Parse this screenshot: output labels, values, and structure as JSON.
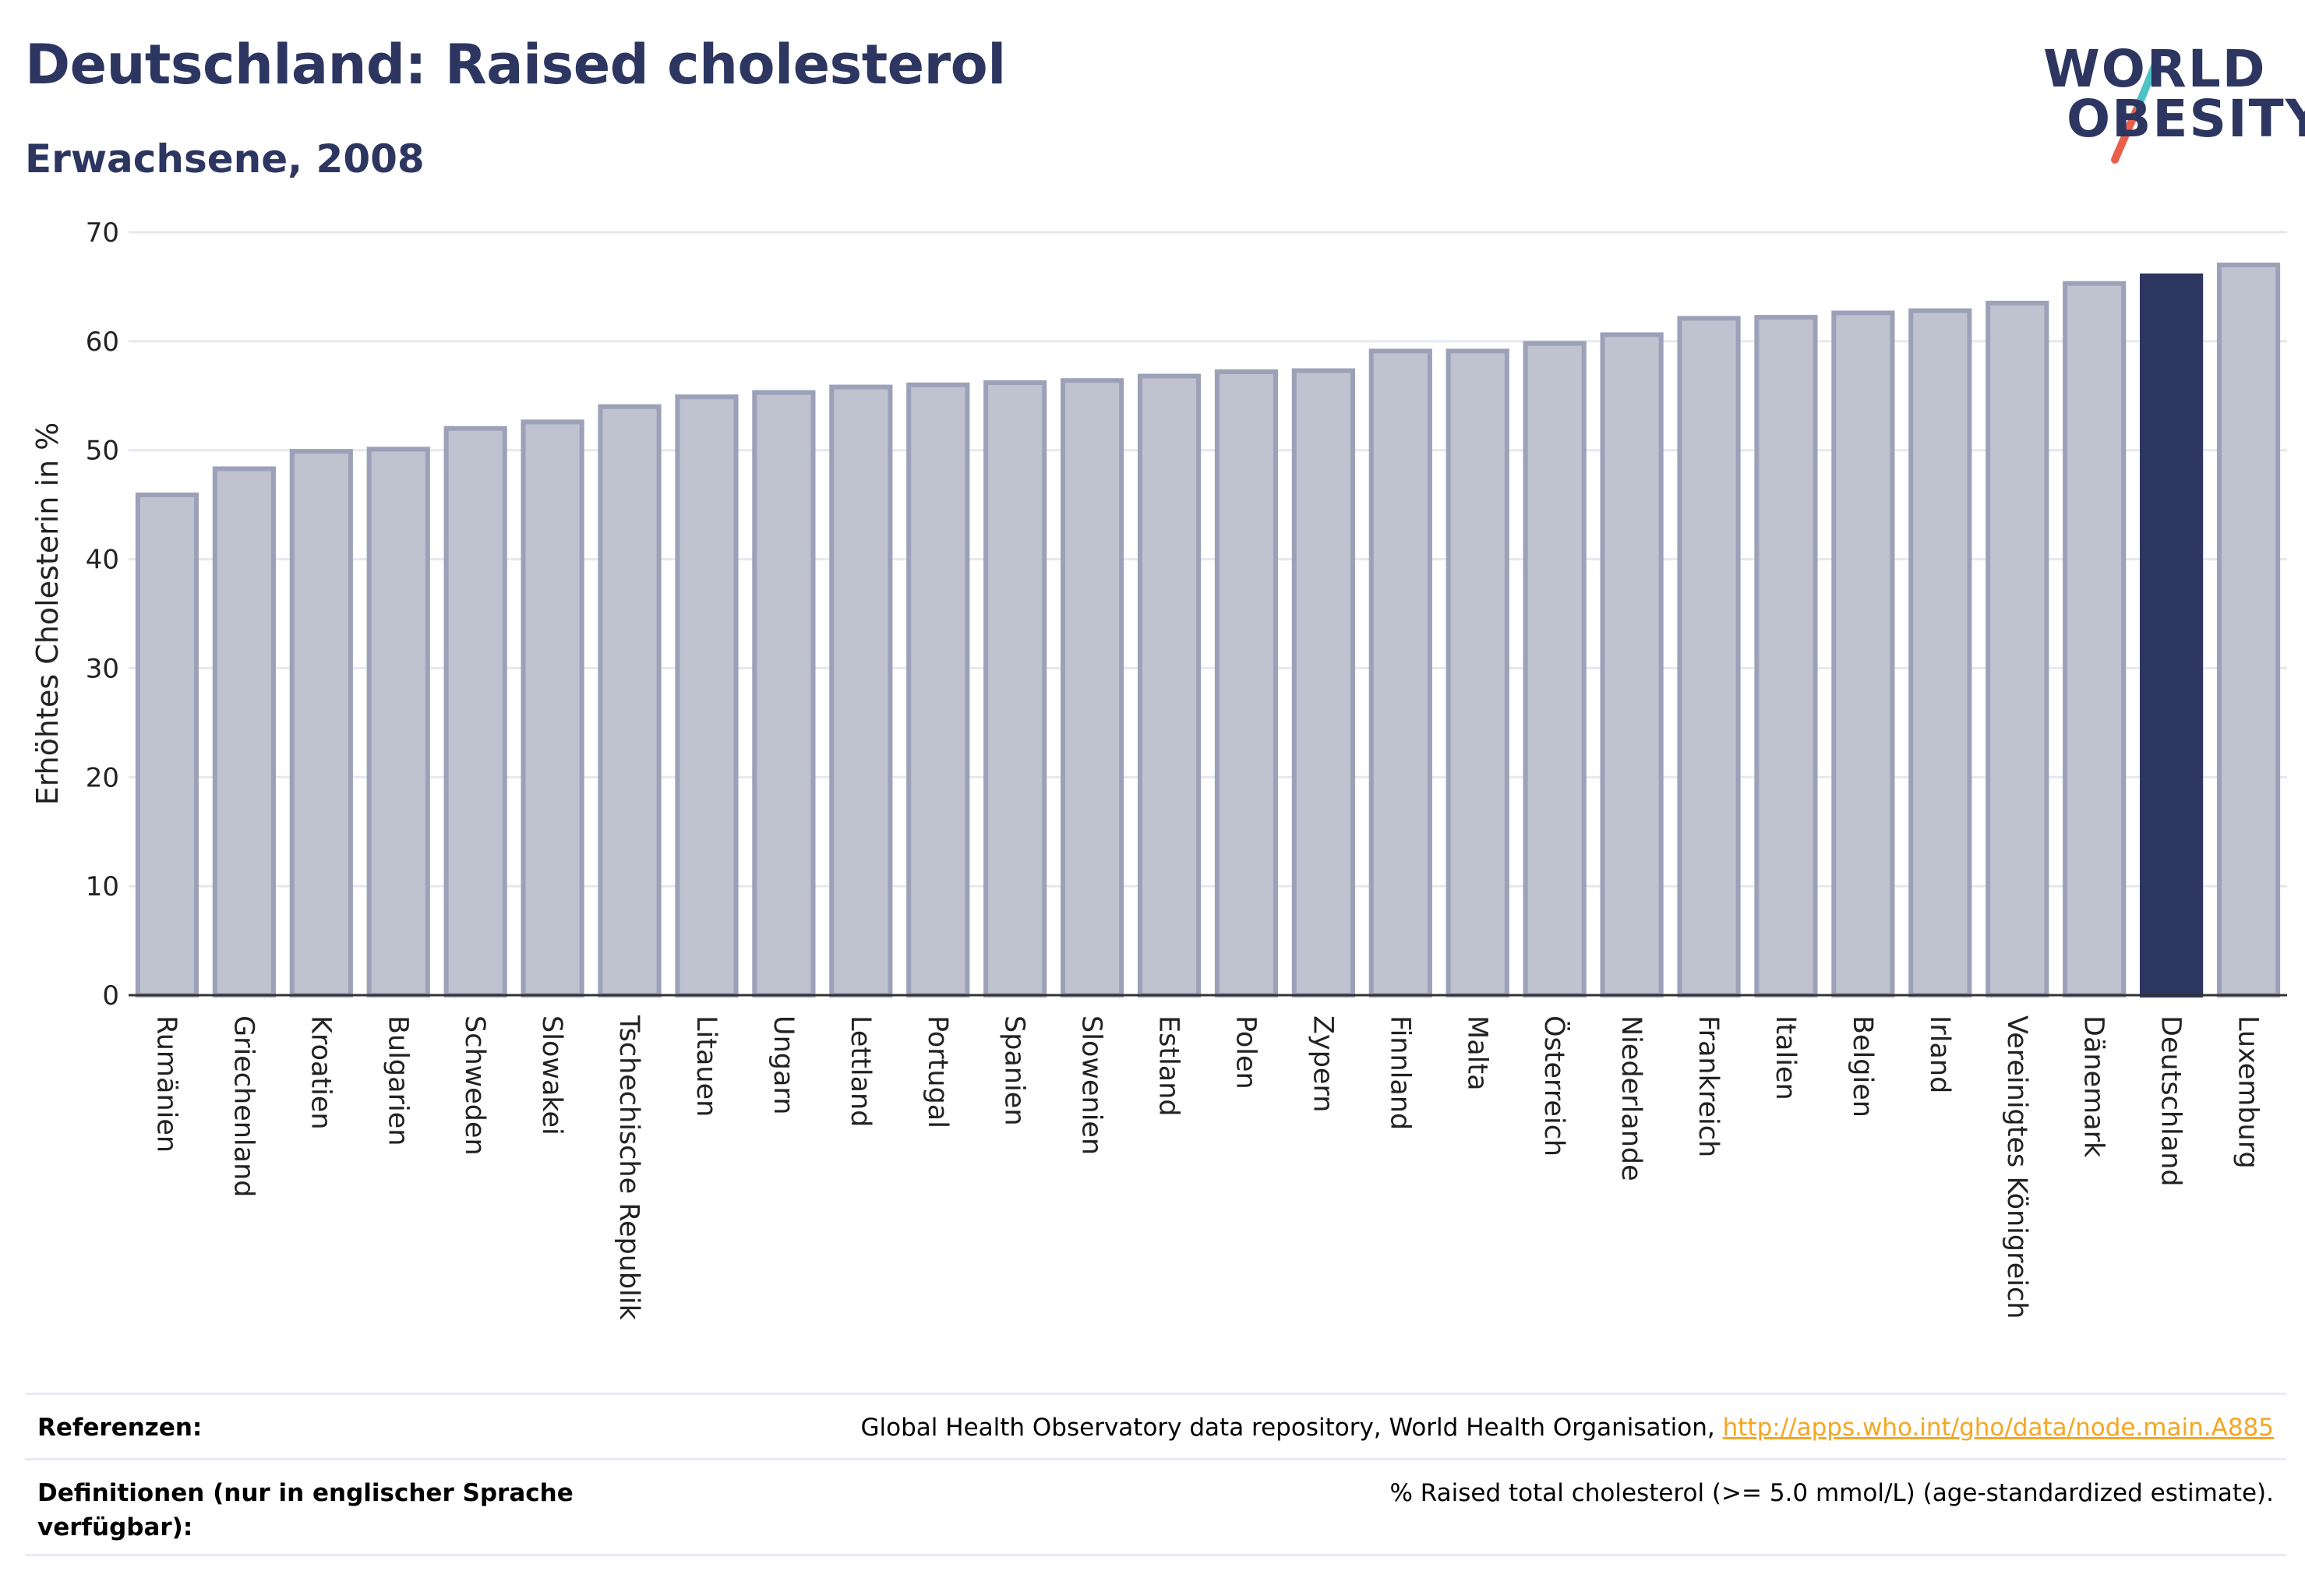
{
  "header": {
    "title": "Deutschland: Raised cholesterol",
    "subtitle": "Erwachsene, 2008"
  },
  "logo": {
    "line1": "WORLD",
    "line2": "OBESITY",
    "text_color": "#2c3660",
    "slash_colors": [
      "#4ec3c4",
      "#e8604c"
    ]
  },
  "chart_data": {
    "type": "bar",
    "ylabel": "Erhöhtes Cholesterin in %",
    "ylim": [
      0,
      70
    ],
    "yticks": [
      0,
      10,
      20,
      30,
      40,
      50,
      60,
      70
    ],
    "grid": true,
    "highlight": "Deutschland",
    "colors": {
      "bar": "#bfc2cf",
      "bar_border": "#9ca1b8",
      "highlight": "#2c3660",
      "grid": "#e6e8ef",
      "axis": "#333333"
    },
    "categories": [
      "Rumänien",
      "Griechenland",
      "Kroatien",
      "Bulgarien",
      "Schweden",
      "Slowakei",
      "Tschechische Republik",
      "Litauen",
      "Ungarn",
      "Lettland",
      "Portugal",
      "Spanien",
      "Slowenien",
      "Estland",
      "Polen",
      "Zypern",
      "Finnland",
      "Malta",
      "Österreich",
      "Niederlande",
      "Frankreich",
      "Italien",
      "Belgien",
      "Irland",
      "Vereinigtes Königreich",
      "Dänemark",
      "Deutschland",
      "Luxemburg"
    ],
    "values": [
      45.9,
      48.3,
      49.9,
      50.1,
      52.0,
      52.6,
      54.0,
      54.9,
      55.3,
      55.8,
      56.0,
      56.2,
      56.4,
      56.8,
      57.2,
      57.3,
      59.1,
      59.1,
      59.8,
      60.6,
      62.1,
      62.2,
      62.6,
      62.8,
      63.5,
      65.3,
      66.0,
      67.0
    ]
  },
  "references": {
    "ref_label": "Referenzen:",
    "ref_text": "Global Health Observatory data repository, World Health Organisation, ",
    "ref_link": "http://apps.who.int/gho/data/node.main.A885",
    "def_label": "Definitionen (nur in englischer Sprache verfügbar):",
    "def_text": "% Raised total cholesterol (>= 5.0 mmol/L) (age-standardized estimate)."
  }
}
